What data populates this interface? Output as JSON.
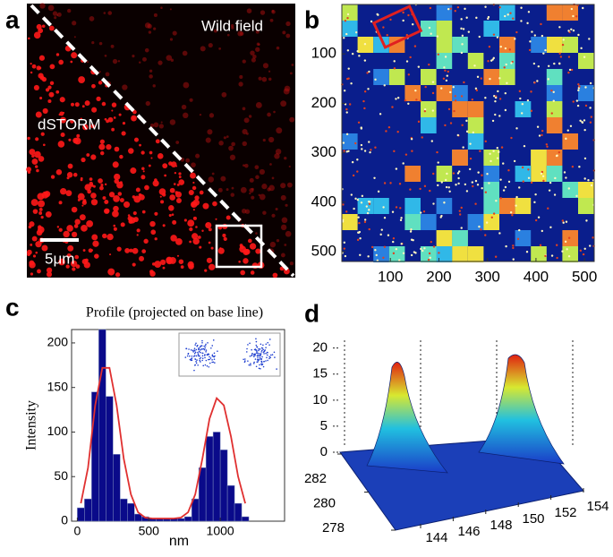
{
  "panels": {
    "a": {
      "label": "a",
      "wild_field": "Wild field",
      "dstorm": "dSTORM",
      "scale_bar": "5μm"
    }
  },
  "chart_data": [
    {
      "type": "heatmap",
      "label": "b",
      "xlim": [
        0,
        520
      ],
      "ylim": [
        0,
        520
      ],
      "y_reversed": true,
      "xticks": [
        100,
        200,
        300,
        400,
        500
      ],
      "yticks": [
        100,
        200,
        300,
        400,
        500
      ]
    },
    {
      "type": "histogram",
      "label": "c",
      "title": "Profile (projected on base line)",
      "x_label": "nm",
      "y_label": "Intensity",
      "bins": [
        0,
        50,
        100,
        150,
        200,
        250,
        300,
        350,
        400,
        450,
        500,
        550,
        600,
        650,
        700,
        750,
        800,
        850,
        900,
        950,
        1000,
        1050,
        1100,
        1150,
        1200
      ],
      "values": [
        15,
        25,
        145,
        215,
        140,
        75,
        25,
        20,
        8,
        5,
        3,
        3,
        3,
        3,
        3,
        5,
        25,
        60,
        95,
        100,
        80,
        40,
        20,
        5
      ],
      "fit_values": [
        20,
        60,
        130,
        172,
        172,
        130,
        70,
        30,
        10,
        4,
        3,
        3,
        3,
        3,
        4,
        10,
        30,
        70,
        115,
        138,
        130,
        95,
        50,
        20
      ],
      "color": "#0a0a8a",
      "fit_color": "#e03030",
      "xlim": [
        -40,
        1450
      ],
      "ylim": [
        0,
        215
      ],
      "xticks": [
        0,
        500,
        1000
      ],
      "yticks": [
        0,
        50,
        100,
        150,
        200
      ]
    },
    {
      "type": "surface",
      "label": "d",
      "zlim": [
        0,
        22
      ],
      "zticks": [
        0,
        5,
        10,
        15,
        20
      ],
      "xlim": [
        144,
        154
      ],
      "xticks": [
        144,
        146,
        148,
        150,
        152,
        154
      ],
      "ylim": [
        278,
        282
      ],
      "yticks": [
        278,
        280,
        282
      ]
    }
  ]
}
